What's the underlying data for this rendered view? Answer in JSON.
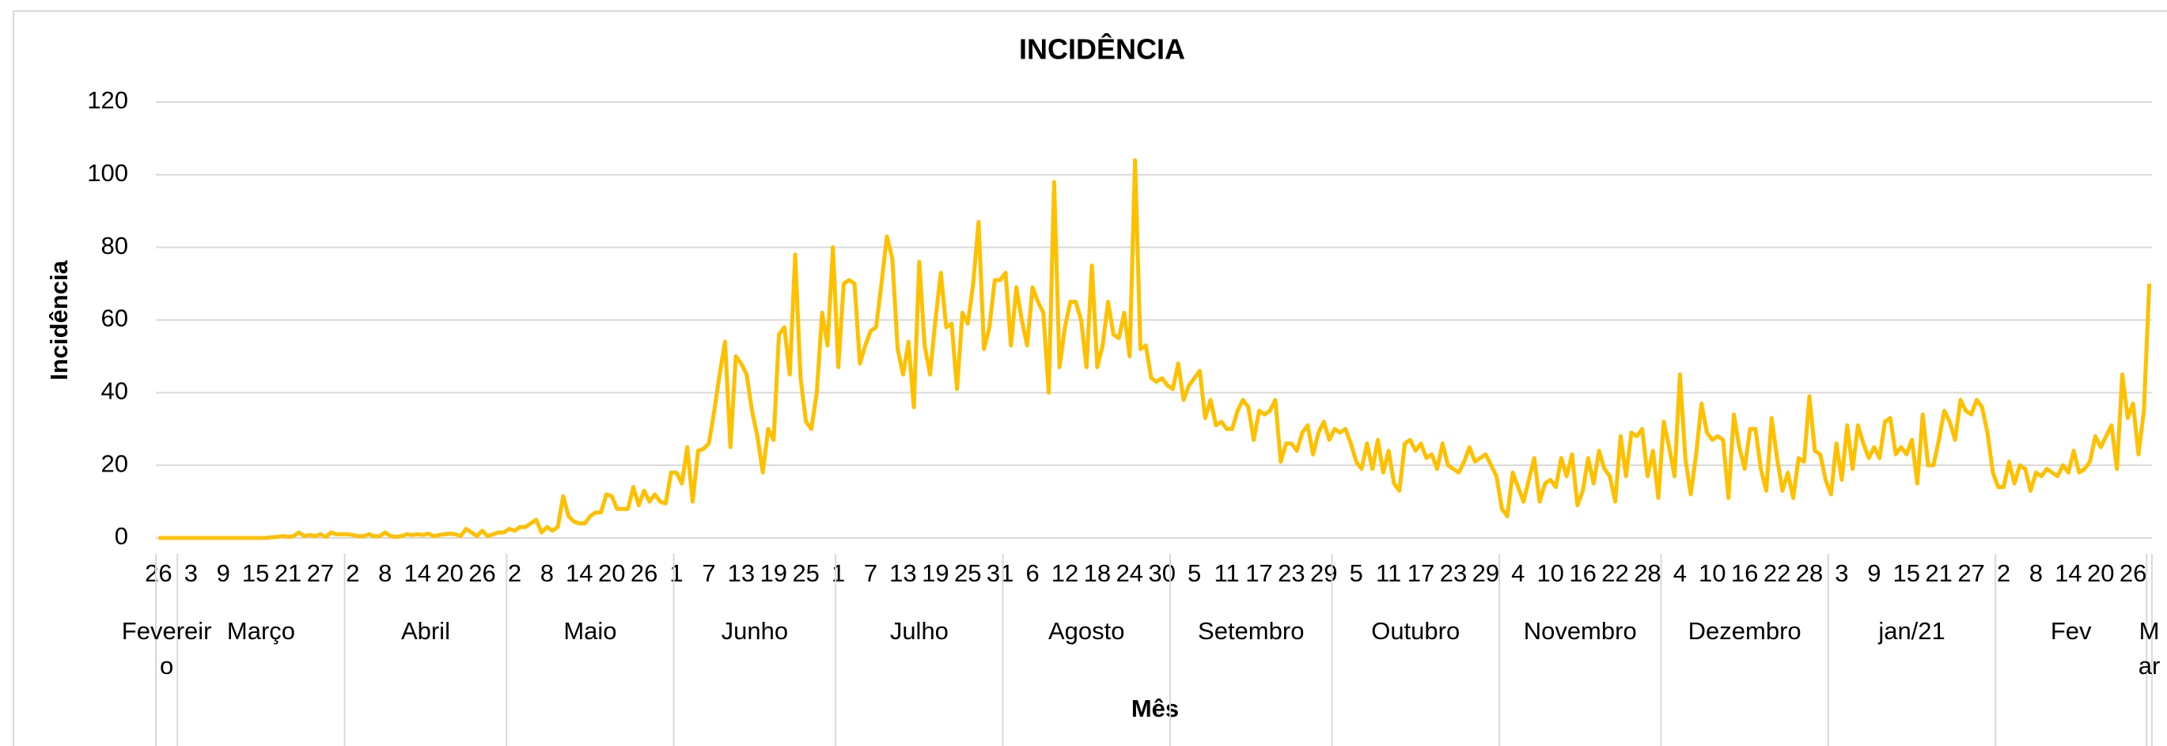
{
  "chart_data": {
    "type": "line",
    "title": "INCIDÊNCIA",
    "y_label": "Incidência",
    "x_label": "Mês",
    "categories": [
      "26",
      null,
      null,
      null,
      null,
      null,
      "3",
      null,
      null,
      null,
      null,
      null,
      "9",
      null,
      null,
      null,
      null,
      null,
      "15",
      null,
      null,
      null,
      null,
      null,
      "21",
      null,
      null,
      null,
      null,
      null,
      "27",
      null,
      null,
      null,
      null,
      null,
      "2",
      null,
      null,
      null,
      null,
      null,
      "8",
      null,
      null,
      null,
      null,
      null,
      "14",
      null,
      null,
      null,
      null,
      null,
      "20",
      null,
      null,
      null,
      null,
      null,
      "26",
      null,
      null,
      null,
      null,
      null,
      "2",
      null,
      null,
      null,
      null,
      null,
      "8",
      null,
      null,
      null,
      null,
      null,
      "14",
      null,
      null,
      null,
      null,
      null,
      "20",
      null,
      null,
      null,
      null,
      null,
      "26",
      null,
      null,
      null,
      null,
      null,
      "1",
      null,
      null,
      null,
      null,
      null,
      "7",
      null,
      null,
      null,
      null,
      null,
      "13",
      null,
      null,
      null,
      null,
      null,
      "19",
      null,
      null,
      null,
      null,
      null,
      "25",
      null,
      null,
      null,
      null,
      null,
      "1",
      null,
      null,
      null,
      null,
      null,
      "7",
      null,
      null,
      null,
      null,
      null,
      "13",
      null,
      null,
      null,
      null,
      null,
      "19",
      null,
      null,
      null,
      null,
      null,
      "25",
      null,
      null,
      null,
      null,
      null,
      "31",
      null,
      null,
      null,
      null,
      null,
      "6",
      null,
      null,
      null,
      null,
      null,
      "12",
      null,
      null,
      null,
      null,
      null,
      "18",
      null,
      null,
      null,
      null,
      null,
      "24",
      null,
      null,
      null,
      null,
      null,
      "30",
      null,
      null,
      null,
      null,
      null,
      "5",
      null,
      null,
      null,
      null,
      null,
      "11",
      null,
      null,
      null,
      null,
      null,
      "17",
      null,
      null,
      null,
      null,
      null,
      "23",
      null,
      null,
      null,
      null,
      null,
      "29",
      null,
      null,
      null,
      null,
      null,
      "5",
      null,
      null,
      null,
      null,
      null,
      "11",
      null,
      null,
      null,
      null,
      null,
      "17",
      null,
      null,
      null,
      null,
      null,
      "23",
      null,
      null,
      null,
      null,
      null,
      "29",
      null,
      null,
      null,
      null,
      null,
      "4",
      null,
      null,
      null,
      null,
      null,
      "10",
      null,
      null,
      null,
      null,
      null,
      "16",
      null,
      null,
      null,
      null,
      null,
      "22",
      null,
      null,
      null,
      null,
      null,
      "28",
      null,
      null,
      null,
      null,
      null,
      "4",
      null,
      null,
      null,
      null,
      null,
      "10",
      null,
      null,
      null,
      null,
      null,
      "16",
      null,
      null,
      null,
      null,
      null,
      "22",
      null,
      null,
      null,
      null,
      null,
      "28",
      null,
      null,
      null,
      null,
      null,
      "3",
      null,
      null,
      null,
      null,
      null,
      "9",
      null,
      null,
      null,
      null,
      null,
      "15",
      null,
      null,
      null,
      null,
      null,
      "21",
      null,
      null,
      null,
      null,
      null,
      "27",
      null,
      null,
      null,
      null,
      null,
      "2",
      null,
      null,
      null,
      null,
      null,
      "8",
      null,
      null,
      null,
      null,
      null,
      "14",
      null,
      null,
      null,
      null,
      null,
      "20",
      null,
      null,
      null,
      null,
      null,
      "26",
      null,
      null,
      null
    ],
    "months": [
      {
        "label": "Fevereiro",
        "days": 4
      },
      {
        "label": "Março",
        "days": 31
      },
      {
        "label": "Abril",
        "days": 30
      },
      {
        "label": "Maio",
        "days": 31
      },
      {
        "label": "Junho",
        "days": 30
      },
      {
        "label": "Julho",
        "days": 31
      },
      {
        "label": "Agosto",
        "days": 31
      },
      {
        "label": "Setembro",
        "days": 30
      },
      {
        "label": "Outubro",
        "days": 31
      },
      {
        "label": "Novembro",
        "days": 30
      },
      {
        "label": "Dezembro",
        "days": 31
      },
      {
        "label": "jan/21",
        "days": 31
      },
      {
        "label": "Fev",
        "days": 28
      },
      {
        "label": "Mar",
        "days": 1
      }
    ],
    "values": [
      0,
      0,
      0,
      0,
      0,
      0,
      0,
      0,
      0,
      0,
      0,
      0,
      0,
      0,
      0,
      0,
      0,
      0,
      0,
      0,
      0,
      0.2,
      0.3,
      0.5,
      0.3,
      0.5,
      1.5,
      0.5,
      0.8,
      0.5,
      1,
      0.3,
      1.5,
      1,
      1,
      1,
      0.8,
      0.5,
      0.5,
      1,
      0.5,
      0.5,
      1.5,
      0.5,
      0.3,
      0.5,
      1,
      0.8,
      1,
      0.8,
      1.2,
      0.5,
      0.8,
      1,
      1.2,
      1,
      0.5,
      2.5,
      1.5,
      0.5,
      2,
      0.5,
      1,
      1.5,
      1.5,
      2.5,
      2,
      3,
      3,
      4,
      5,
      1.5,
      3,
      2,
      3,
      11.5,
      6,
      4.5,
      4,
      4,
      6,
      7,
      7,
      12,
      11.5,
      8,
      8,
      8,
      14,
      9,
      13,
      10,
      12,
      10,
      9.5,
      18,
      18,
      15,
      25,
      10,
      24,
      24.5,
      26,
      35,
      45,
      54,
      25,
      50,
      48,
      45,
      35,
      28,
      18,
      30,
      27,
      56,
      58,
      45,
      78,
      44,
      32,
      30,
      40,
      62,
      53,
      80,
      47,
      70,
      71,
      70,
      48,
      53,
      57,
      58,
      70,
      83,
      77,
      52,
      45,
      54,
      36,
      76,
      53,
      45,
      60,
      73,
      58,
      59,
      41,
      62,
      59,
      70,
      87,
      52,
      58,
      71,
      71,
      73,
      53,
      69,
      60,
      53,
      69,
      65,
      62,
      40,
      98,
      47,
      58,
      65,
      65,
      60,
      47,
      75,
      47,
      53,
      65,
      56,
      55,
      62,
      50,
      104,
      52,
      53,
      44,
      43,
      44,
      42,
      41,
      48,
      38,
      42,
      44,
      46,
      33,
      38,
      31,
      32,
      30,
      30,
      35,
      38,
      36,
      27,
      35,
      34,
      35,
      38,
      21,
      26,
      26,
      24,
      29,
      31,
      23,
      29,
      32,
      27,
      30,
      29,
      30,
      26,
      21,
      19,
      26,
      19,
      27,
      18,
      24,
      15,
      13,
      26,
      27,
      24,
      26,
      22,
      23,
      19,
      26,
      20,
      19,
      18,
      21,
      25,
      21,
      22,
      23,
      20,
      17,
      8,
      6,
      18,
      14,
      10,
      16,
      22,
      10,
      15,
      16,
      14,
      22,
      17,
      23,
      9,
      13,
      22,
      15,
      24,
      19,
      17,
      10,
      28,
      17,
      29,
      28,
      30,
      17,
      24,
      11,
      32,
      25,
      17,
      45,
      22,
      12,
      23,
      37,
      29,
      27,
      28,
      27,
      11,
      34,
      25,
      19,
      30,
      30,
      19,
      13,
      33,
      22,
      13,
      18,
      11,
      22,
      21,
      39,
      24,
      23,
      16,
      12,
      26,
      16,
      31,
      19,
      31,
      26,
      22,
      25,
      22,
      32,
      33,
      23,
      25,
      23,
      27,
      15,
      34,
      20,
      20,
      27,
      35,
      32,
      27,
      38,
      35,
      34,
      38,
      36,
      29,
      18,
      14,
      14,
      21,
      15,
      20,
      19,
      13,
      18,
      17,
      19,
      18,
      17,
      20,
      18,
      24,
      18,
      19,
      21,
      28,
      25,
      28,
      31,
      19,
      45,
      33,
      37,
      23,
      35,
      70
    ],
    "color": "#ffc000",
    "ylim": [
      0,
      120
    ],
    "yticks": [
      0,
      20,
      40,
      60,
      80,
      100,
      120
    ],
    "grid": true
  }
}
